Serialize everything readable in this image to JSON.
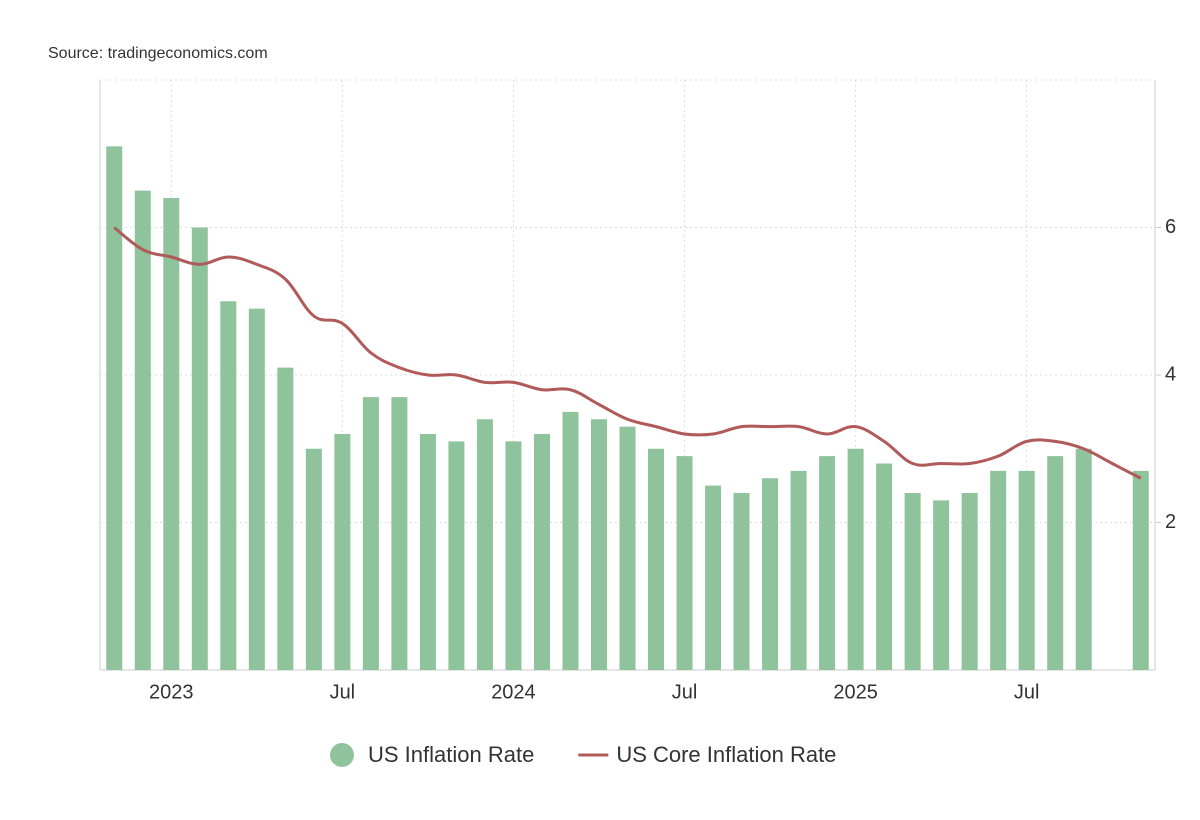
{
  "chart_data": {
    "type": "bar_line",
    "source": "Source: tradingeconomics.com",
    "categories": [
      null,
      null,
      "2023",
      null,
      null,
      null,
      null,
      null,
      "Jul",
      null,
      null,
      null,
      null,
      null,
      "2024",
      null,
      null,
      null,
      null,
      null,
      "Jul",
      null,
      null,
      null,
      null,
      null,
      "2025",
      null,
      null,
      null,
      null,
      null,
      "Jul",
      null,
      null,
      null,
      null
    ],
    "series": [
      {
        "name": "US Inflation Rate",
        "color": "#8fc39b",
        "kind": "bar",
        "values": [
          7.1,
          6.5,
          6.4,
          6.0,
          5.0,
          4.9,
          4.1,
          3.0,
          3.2,
          3.7,
          3.7,
          3.2,
          3.1,
          3.4,
          3.1,
          3.2,
          3.5,
          3.4,
          3.3,
          3.0,
          2.9,
          2.5,
          2.4,
          2.6,
          2.7,
          2.9,
          3.0,
          2.8,
          2.4,
          2.3,
          2.4,
          2.7,
          2.7,
          2.9,
          3.0,
          null,
          2.7
        ]
      },
      {
        "name": "US Core Inflation Rate",
        "color": "#b05a5a",
        "kind": "line",
        "values": [
          6.0,
          5.7,
          5.6,
          5.5,
          5.6,
          5.5,
          5.3,
          4.8,
          4.7,
          4.3,
          4.1,
          4.0,
          4.0,
          3.9,
          3.9,
          3.8,
          3.8,
          3.6,
          3.4,
          3.3,
          3.2,
          3.2,
          3.3,
          3.3,
          3.3,
          3.2,
          3.3,
          3.1,
          2.8,
          2.8,
          2.8,
          2.9,
          3.1,
          3.1,
          3.0,
          2.8,
          2.6
        ]
      }
    ],
    "ylim": [
      0,
      8
    ],
    "yticks": [
      2,
      4,
      6
    ],
    "grid": true,
    "legend": "bottom"
  }
}
